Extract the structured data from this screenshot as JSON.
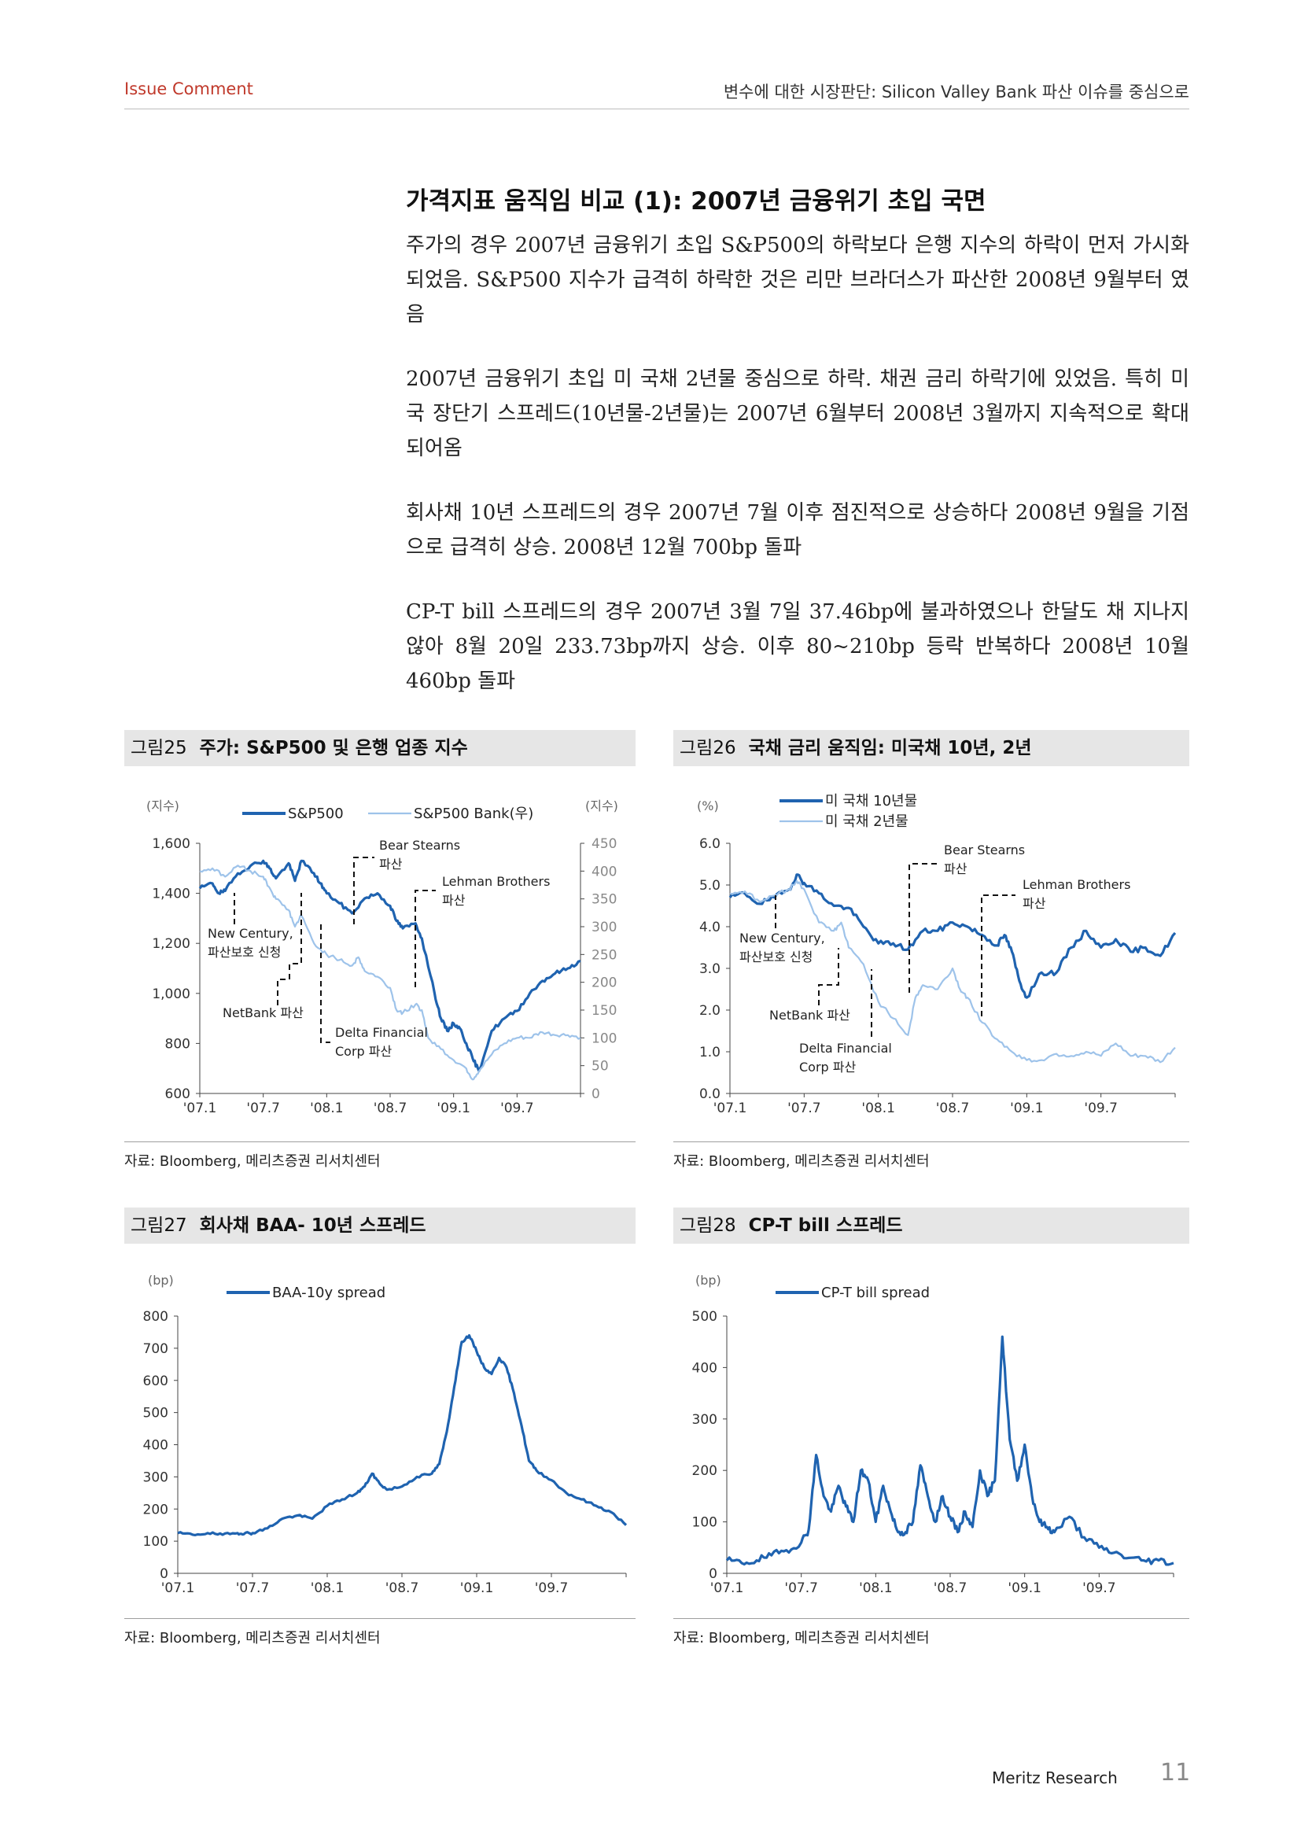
{
  "header": {
    "left": "Issue Comment",
    "right": "변수에 대한 시장판단: Silicon Valley Bank 파산 이슈를 중심으로"
  },
  "section_title": "가격지표 움직임 비교 (1): 2007년 금융위기 초입 국면",
  "paragraphs": [
    "주가의 경우 2007년 금융위기 초입 S&P500의 하락보다 은행 지수의 하락이 먼저 가시화되었음. S&P500 지수가 급격히 하락한 것은 리만 브라더스가 파산한 2008년 9월부터 였음",
    "2007년 금융위기 초입 미 국채 2년물 중심으로 하락. 채권 금리 하락기에 있었음. 특히 미국 장단기 스프레드(10년물-2년물)는 2007년 6월부터 2008년 3월까지 지속적으로 확대되어옴",
    "회사채 10년 스프레드의 경우 2007년 7월 이후 점진적으로 상승하다 2008년 9월을 기점으로 급격히 상승. 2008년 12월 700bp 돌파",
    "CP-T bill 스프레드의 경우 2007년 3월 7일 37.46bp에 불과하였으나 한달도 채 지나지 않아 8월 20일 233.73bp까지 상승. 이후 80~210bp 등락 반복하다 2008년 10월 460bp 돌파"
  ],
  "figures": [
    {
      "num": "그림25",
      "title": "주가: S&P500 및 은행 업종 지수",
      "source": "자료: Bloomberg, 메리츠증권 리서치센터"
    },
    {
      "num": "그림26",
      "title": "국채 금리 움직임: 미국채 10년, 2년",
      "source": "자료: Bloomberg, 메리츠증권 리서치센터"
    },
    {
      "num": "그림27",
      "title": "회사채 BAA- 10년 스프레드",
      "source": "자료: Bloomberg, 메리츠증권 리서치센터"
    },
    {
      "num": "그림28",
      "title": "CP-T bill 스프레드",
      "source": "자료: Bloomberg, 메리츠증권 리서치센터"
    }
  ],
  "footer": {
    "name": "Meritz Research",
    "page": "11"
  },
  "chart_data": [
    {
      "type": "line",
      "colors": [
        "#1f63b0",
        "#9ec3ea"
      ],
      "left_unit": "(지수)",
      "right_unit": "(지수)",
      "y_left": [
        600,
        1600
      ],
      "y_right": [
        0,
        450
      ],
      "left_ticks": [
        "1,600",
        "1,400",
        "1,200",
        "1,000",
        "800",
        "600"
      ],
      "right_ticks": [
        "450",
        "400",
        "350",
        "300",
        "250",
        "200",
        "150",
        "100",
        "50",
        "0"
      ],
      "x_ticks": [
        "'07.1",
        "'07.7",
        "'08.1",
        "'08.7",
        "'09.1",
        "'09.7"
      ],
      "series": [
        {
          "name": "S&P500",
          "axis": "left",
          "x": [
            2007.0,
            2007.1,
            2007.15,
            2007.2,
            2007.3,
            2007.4,
            2007.5,
            2007.55,
            2007.6,
            2007.7,
            2007.75,
            2007.8,
            2007.9,
            2007.95,
            2008.0,
            2008.1,
            2008.2,
            2008.3,
            2008.4,
            2008.5,
            2008.55,
            2008.6,
            2008.7,
            2008.75,
            2008.85,
            2008.9,
            2008.95,
            2009.0,
            2009.05,
            2009.1,
            2009.15,
            2009.2,
            2009.3,
            2009.4,
            2009.5,
            2009.6,
            2009.7,
            2009.8,
            2009.9,
            2010.0
          ],
          "values": [
            1420,
            1440,
            1400,
            1410,
            1480,
            1510,
            1530,
            1500,
            1460,
            1520,
            1450,
            1530,
            1480,
            1440,
            1400,
            1360,
            1320,
            1380,
            1400,
            1350,
            1290,
            1260,
            1280,
            1220,
            1000,
            900,
            850,
            880,
            860,
            800,
            740,
            690,
            850,
            900,
            930,
            1000,
            1050,
            1080,
            1100,
            1130
          ]
        },
        {
          "name": "S&P500  Bank(우)",
          "axis": "right",
          "x": [
            2007.0,
            2007.1,
            2007.2,
            2007.3,
            2007.4,
            2007.5,
            2007.55,
            2007.6,
            2007.7,
            2007.75,
            2007.8,
            2007.9,
            2008.0,
            2008.1,
            2008.2,
            2008.25,
            2008.3,
            2008.4,
            2008.5,
            2008.55,
            2008.6,
            2008.7,
            2008.75,
            2008.8,
            2008.9,
            2009.0,
            2009.1,
            2009.15,
            2009.2,
            2009.3,
            2009.4,
            2009.5,
            2009.6,
            2009.7,
            2009.8,
            2009.9,
            2010.0
          ],
          "values": [
            400,
            405,
            390,
            410,
            400,
            390,
            370,
            350,
            330,
            300,
            320,
            270,
            250,
            240,
            230,
            245,
            220,
            210,
            190,
            150,
            145,
            160,
            150,
            100,
            80,
            60,
            45,
            25,
            40,
            70,
            90,
            100,
            100,
            110,
            105,
            105,
            100
          ]
        }
      ]
    },
    {
      "type": "line",
      "colors": [
        "#1f63b0",
        "#9ec3ea"
      ],
      "left_unit": "(%)",
      "ylim": [
        0,
        6
      ],
      "left_ticks": [
        "6.0",
        "5.0",
        "4.0",
        "3.0",
        "2.0",
        "1.0",
        "0.0"
      ],
      "x_ticks": [
        "'07.1",
        "'07.7",
        "'08.1",
        "'08.7",
        "'09.1",
        "'09.7"
      ],
      "series": [
        {
          "name": "미 국채 10년물",
          "x": [
            2007.0,
            2007.1,
            2007.2,
            2007.3,
            2007.4,
            2007.45,
            2007.5,
            2007.6,
            2007.7,
            2007.8,
            2007.9,
            2008.0,
            2008.1,
            2008.2,
            2008.3,
            2008.4,
            2008.5,
            2008.6,
            2008.7,
            2008.8,
            2008.85,
            2008.9,
            2008.95,
            2009.0,
            2009.1,
            2009.2,
            2009.3,
            2009.4,
            2009.5,
            2009.6,
            2009.7,
            2009.8,
            2009.9,
            2010.0
          ],
          "values": [
            4.7,
            4.8,
            4.55,
            4.7,
            4.9,
            5.25,
            5.05,
            4.8,
            4.5,
            4.45,
            4.0,
            3.6,
            3.6,
            3.45,
            3.9,
            3.9,
            4.1,
            4.0,
            3.8,
            3.55,
            3.8,
            3.4,
            2.7,
            2.3,
            2.9,
            2.9,
            3.5,
            3.9,
            3.5,
            3.7,
            3.4,
            3.5,
            3.3,
            3.85
          ]
        },
        {
          "name": "미 국채 2년물",
          "x": [
            2007.0,
            2007.1,
            2007.2,
            2007.3,
            2007.4,
            2007.45,
            2007.5,
            2007.6,
            2007.7,
            2007.75,
            2007.8,
            2007.9,
            2008.0,
            2008.1,
            2008.2,
            2008.25,
            2008.3,
            2008.4,
            2008.5,
            2008.55,
            2008.6,
            2008.7,
            2008.8,
            2008.9,
            2009.0,
            2009.1,
            2009.2,
            2009.3,
            2009.4,
            2009.5,
            2009.6,
            2009.7,
            2009.8,
            2009.9,
            2010.0
          ],
          "values": [
            4.8,
            4.85,
            4.6,
            4.75,
            4.9,
            5.1,
            4.9,
            4.1,
            3.9,
            4.1,
            3.5,
            3.1,
            2.2,
            1.8,
            1.4,
            2.3,
            2.6,
            2.5,
            3.0,
            2.5,
            2.3,
            1.7,
            1.3,
            1.0,
            0.8,
            0.8,
            0.95,
            0.9,
            1.0,
            0.9,
            1.2,
            0.9,
            0.9,
            0.75,
            1.1
          ]
        }
      ]
    },
    {
      "type": "line",
      "colors": [
        "#1f63b0"
      ],
      "left_unit": "(bp)",
      "ylim": [
        0,
        800
      ],
      "left_ticks": [
        "800",
        "700",
        "600",
        "500",
        "400",
        "300",
        "200",
        "100",
        "0"
      ],
      "x_ticks": [
        "'07.1",
        "'07.7",
        "'08.1",
        "'08.7",
        "'09.1",
        "'09.7"
      ],
      "series": [
        {
          "name": "BAA-10y spread",
          "x": [
            2007.0,
            2007.1,
            2007.2,
            2007.3,
            2007.4,
            2007.45,
            2007.5,
            2007.6,
            2007.7,
            2007.8,
            2007.9,
            2008.0,
            2008.1,
            2008.2,
            2008.25,
            2008.3,
            2008.35,
            2008.4,
            2008.5,
            2008.6,
            2008.7,
            2008.75,
            2008.8,
            2008.85,
            2008.9,
            2008.95,
            2009.0,
            2009.05,
            2009.1,
            2009.15,
            2009.2,
            2009.25,
            2009.3,
            2009.35,
            2009.4,
            2009.5,
            2009.6,
            2009.7,
            2009.8,
            2009.9,
            2010.0
          ],
          "values": [
            125,
            120,
            125,
            120,
            125,
            125,
            125,
            140,
            170,
            180,
            170,
            210,
            230,
            250,
            270,
            310,
            280,
            260,
            270,
            300,
            310,
            340,
            440,
            580,
            720,
            740,
            690,
            640,
            620,
            670,
            640,
            560,
            460,
            350,
            320,
            290,
            250,
            230,
            210,
            190,
            150
          ]
        }
      ]
    },
    {
      "type": "line",
      "colors": [
        "#1f63b0"
      ],
      "left_unit": "(bp)",
      "ylim": [
        0,
        500
      ],
      "left_ticks": [
        "500",
        "400",
        "300",
        "200",
        "100",
        "0"
      ],
      "x_ticks": [
        "'07.1",
        "'07.7",
        "'08.1",
        "'08.7",
        "'09.1",
        "'09.7"
      ],
      "series": [
        {
          "name": "CP-T bill spread",
          "x": [
            2007.0,
            2007.1,
            2007.2,
            2007.3,
            2007.4,
            2007.5,
            2007.55,
            2007.6,
            2007.65,
            2007.7,
            2007.75,
            2007.8,
            2007.85,
            2007.9,
            2007.95,
            2008.0,
            2008.05,
            2008.1,
            2008.15,
            2008.2,
            2008.25,
            2008.3,
            2008.35,
            2008.4,
            2008.45,
            2008.5,
            2008.55,
            2008.6,
            2008.65,
            2008.7,
            2008.75,
            2008.8,
            2008.85,
            2008.9,
            2008.95,
            2009.0,
            2009.05,
            2009.1,
            2009.15,
            2009.2,
            2009.3,
            2009.4,
            2009.5,
            2009.6,
            2009.7,
            2009.8,
            2009.9,
            2010.0
          ],
          "values": [
            25,
            20,
            25,
            35,
            45,
            60,
            85,
            230,
            150,
            120,
            170,
            130,
            100,
            200,
            180,
            100,
            170,
            120,
            80,
            80,
            100,
            210,
            150,
            100,
            150,
            110,
            80,
            120,
            90,
            200,
            150,
            180,
            460,
            260,
            180,
            250,
            150,
            100,
            90,
            80,
            110,
            70,
            50,
            40,
            30,
            25,
            25,
            20
          ]
        }
      ]
    }
  ],
  "annotations": {
    "c1": {
      "new_century": "New Century,",
      "new_century_2": "파산보호 신청",
      "netbank": "NetBank 파산",
      "bear": "Bear Stearns",
      "bear_2": "파산",
      "lehman": "Lehman Brothers",
      "lehman_2": "파산",
      "delta": "Delta Financial",
      "delta_2": "Corp 파산"
    },
    "c2": {
      "new_century": "New Century,",
      "new_century_2": "파산보호 신청",
      "netbank": "NetBank 파산",
      "bear": "Bear Stearns",
      "bear_2": "파산",
      "lehman": "Lehman Brothers",
      "lehman_2": "파산",
      "delta": "Delta Financial",
      "delta_2": "Corp 파산"
    }
  }
}
